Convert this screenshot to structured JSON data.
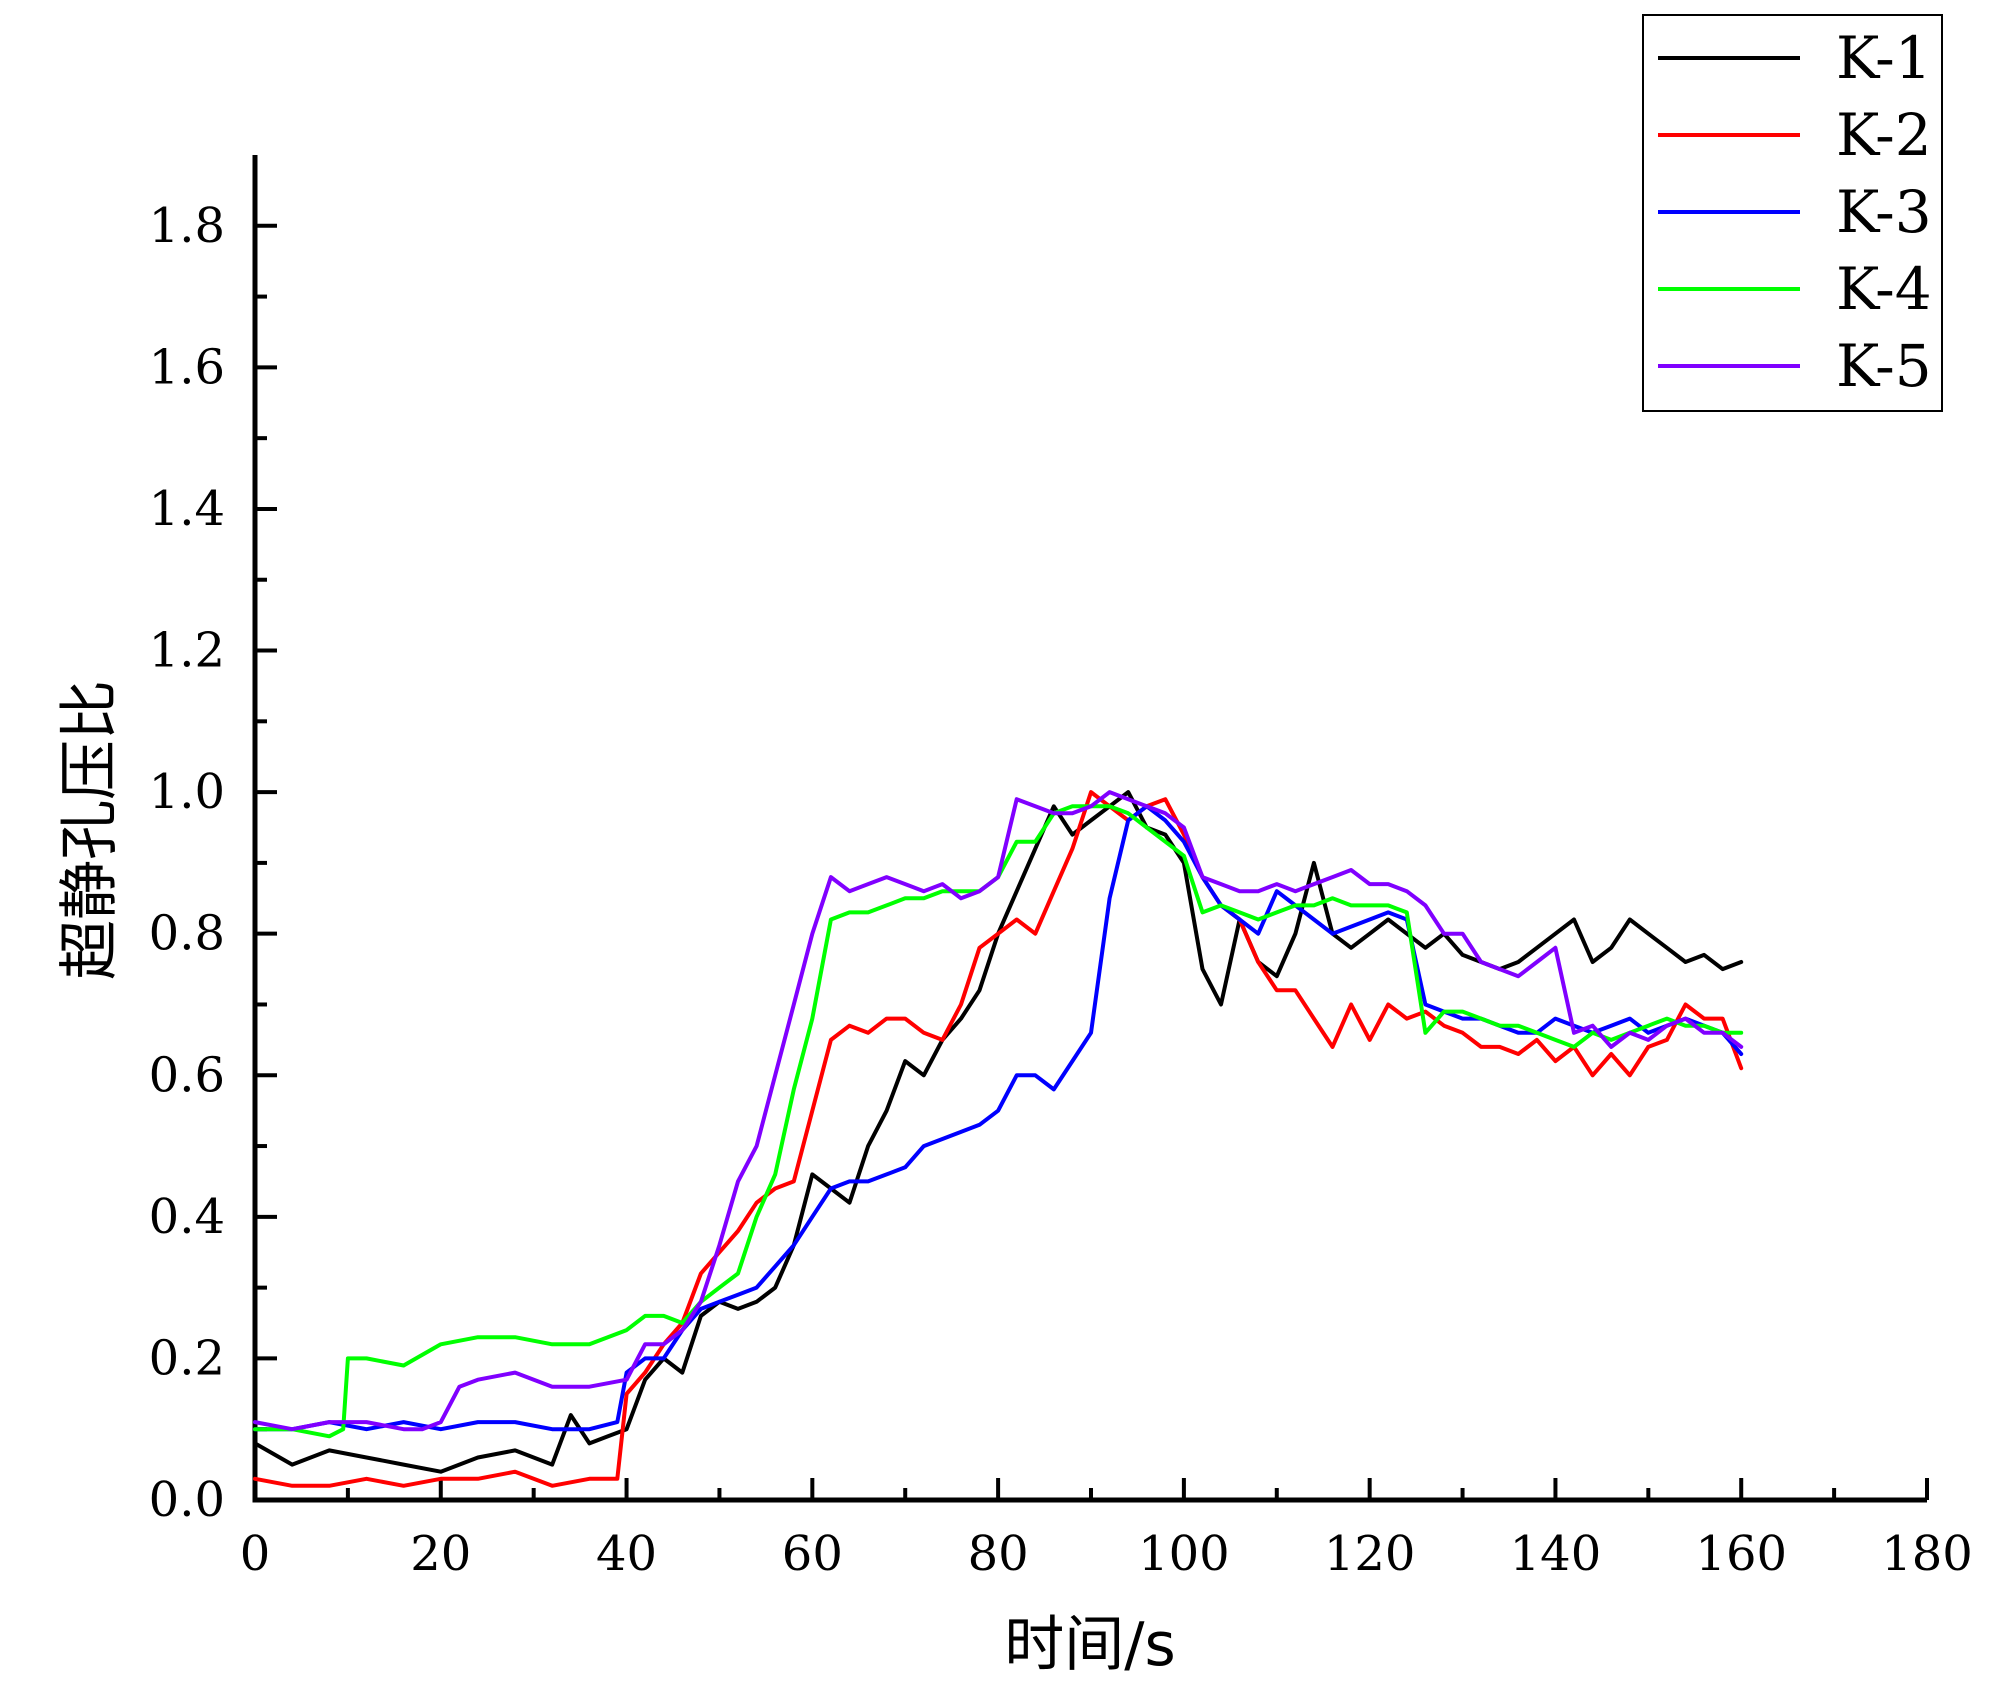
{
  "chart_data": {
    "type": "line",
    "title": "",
    "xlabel": "时间/s",
    "ylabel": "超静孔压比",
    "xlim": [
      0,
      180
    ],
    "ylim": [
      0,
      1.9
    ],
    "xticks": [
      "0",
      "20",
      "40",
      "60",
      "80",
      "100",
      "120",
      "140",
      "160",
      "180"
    ],
    "yticks": [
      "0.0",
      "0.2",
      "0.4",
      "0.6",
      "0.8",
      "1.0",
      "1.2",
      "1.4",
      "1.6",
      "1.8"
    ],
    "legend_position": "top-right",
    "series": [
      {
        "name": "K-1",
        "color": "#000000",
        "x": [
          0,
          4,
          8,
          12,
          16,
          20,
          24,
          28,
          32,
          34,
          36,
          38,
          40,
          42,
          44,
          46,
          48,
          50,
          52,
          54,
          56,
          58,
          60,
          62,
          64,
          66,
          68,
          70,
          72,
          74,
          76,
          78,
          80,
          82,
          84,
          86,
          88,
          90,
          92,
          94,
          96,
          98,
          100,
          102,
          104,
          106,
          108,
          110,
          112,
          114,
          116,
          118,
          120,
          122,
          124,
          126,
          128,
          130,
          132,
          134,
          136,
          138,
          140,
          142,
          144,
          146,
          148,
          150,
          152,
          154,
          156,
          158,
          160
        ],
        "y": [
          0.08,
          0.05,
          0.07,
          0.06,
          0.05,
          0.04,
          0.06,
          0.07,
          0.05,
          0.12,
          0.08,
          0.09,
          0.1,
          0.17,
          0.2,
          0.18,
          0.26,
          0.28,
          0.27,
          0.28,
          0.3,
          0.36,
          0.46,
          0.44,
          0.42,
          0.5,
          0.55,
          0.62,
          0.6,
          0.65,
          0.68,
          0.72,
          0.8,
          0.86,
          0.92,
          0.98,
          0.94,
          0.96,
          0.98,
          1.0,
          0.95,
          0.94,
          0.9,
          0.75,
          0.7,
          0.82,
          0.76,
          0.74,
          0.8,
          0.9,
          0.8,
          0.78,
          0.8,
          0.82,
          0.8,
          0.78,
          0.8,
          0.77,
          0.76,
          0.75,
          0.76,
          0.78,
          0.8,
          0.82,
          0.76,
          0.78,
          0.82,
          0.8,
          0.78,
          0.76,
          0.77,
          0.75,
          0.76
        ]
      },
      {
        "name": "K-2",
        "color": "#ff0000",
        "x": [
          0,
          4,
          8,
          12,
          16,
          20,
          24,
          28,
          32,
          36,
          39,
          40,
          42,
          44,
          46,
          48,
          50,
          52,
          54,
          56,
          58,
          60,
          62,
          64,
          66,
          68,
          70,
          72,
          74,
          76,
          78,
          80,
          82,
          84,
          86,
          88,
          90,
          92,
          94,
          96,
          98,
          100,
          102,
          104,
          106,
          108,
          110,
          112,
          114,
          116,
          118,
          120,
          122,
          124,
          126,
          128,
          130,
          132,
          134,
          136,
          138,
          140,
          142,
          144,
          146,
          148,
          150,
          152,
          154,
          156,
          158,
          160
        ],
        "y": [
          0.03,
          0.02,
          0.02,
          0.03,
          0.02,
          0.03,
          0.03,
          0.04,
          0.02,
          0.03,
          0.03,
          0.15,
          0.18,
          0.22,
          0.25,
          0.32,
          0.35,
          0.38,
          0.42,
          0.44,
          0.45,
          0.55,
          0.65,
          0.67,
          0.66,
          0.68,
          0.68,
          0.66,
          0.65,
          0.7,
          0.78,
          0.8,
          0.82,
          0.8,
          0.86,
          0.92,
          1.0,
          0.98,
          0.96,
          0.98,
          0.99,
          0.94,
          0.88,
          0.84,
          0.82,
          0.76,
          0.72,
          0.72,
          0.68,
          0.64,
          0.7,
          0.65,
          0.7,
          0.68,
          0.69,
          0.67,
          0.66,
          0.64,
          0.64,
          0.63,
          0.65,
          0.62,
          0.64,
          0.6,
          0.63,
          0.6,
          0.64,
          0.65,
          0.7,
          0.68,
          0.68,
          0.61
        ]
      },
      {
        "name": "K-3",
        "color": "#0000ff",
        "x": [
          0,
          4,
          8,
          12,
          16,
          20,
          24,
          28,
          32,
          36,
          39,
          40,
          42,
          44,
          46,
          48,
          50,
          52,
          54,
          56,
          58,
          60,
          62,
          64,
          66,
          68,
          70,
          72,
          74,
          76,
          78,
          80,
          82,
          84,
          86,
          88,
          90,
          92,
          94,
          96,
          98,
          100,
          102,
          104,
          106,
          108,
          110,
          112,
          114,
          116,
          118,
          120,
          122,
          124,
          126,
          128,
          130,
          132,
          134,
          136,
          138,
          140,
          142,
          144,
          146,
          148,
          150,
          152,
          154,
          156,
          158,
          160
        ],
        "y": [
          0.1,
          0.1,
          0.11,
          0.1,
          0.11,
          0.1,
          0.11,
          0.11,
          0.1,
          0.1,
          0.11,
          0.18,
          0.2,
          0.2,
          0.24,
          0.27,
          0.28,
          0.29,
          0.3,
          0.33,
          0.36,
          0.4,
          0.44,
          0.45,
          0.45,
          0.46,
          0.47,
          0.5,
          0.51,
          0.52,
          0.53,
          0.55,
          0.6,
          0.6,
          0.58,
          0.62,
          0.66,
          0.85,
          0.96,
          0.98,
          0.96,
          0.93,
          0.88,
          0.84,
          0.82,
          0.8,
          0.86,
          0.84,
          0.82,
          0.8,
          0.81,
          0.82,
          0.83,
          0.82,
          0.7,
          0.69,
          0.68,
          0.68,
          0.67,
          0.66,
          0.66,
          0.68,
          0.67,
          0.66,
          0.67,
          0.68,
          0.66,
          0.67,
          0.68,
          0.67,
          0.66,
          0.63
        ]
      },
      {
        "name": "K-4",
        "color": "#00ff00",
        "x": [
          0,
          4,
          8,
          9.5,
          10,
          12,
          16,
          20,
          24,
          28,
          32,
          36,
          40,
          42,
          44,
          46,
          48,
          50,
          52,
          54,
          56,
          58,
          60,
          62,
          64,
          66,
          68,
          70,
          72,
          74,
          76,
          78,
          80,
          82,
          84,
          86,
          88,
          90,
          92,
          94,
          96,
          98,
          100,
          102,
          104,
          106,
          108,
          110,
          112,
          114,
          116,
          118,
          120,
          122,
          124,
          126,
          128,
          130,
          132,
          134,
          136,
          138,
          140,
          142,
          144,
          146,
          148,
          150,
          152,
          154,
          156,
          158,
          160
        ],
        "y": [
          0.1,
          0.1,
          0.09,
          0.1,
          0.2,
          0.2,
          0.19,
          0.22,
          0.23,
          0.23,
          0.22,
          0.22,
          0.24,
          0.26,
          0.26,
          0.25,
          0.28,
          0.3,
          0.32,
          0.4,
          0.46,
          0.58,
          0.68,
          0.82,
          0.83,
          0.83,
          0.84,
          0.85,
          0.85,
          0.86,
          0.86,
          0.86,
          0.88,
          0.93,
          0.93,
          0.97,
          0.98,
          0.98,
          0.98,
          0.97,
          0.95,
          0.93,
          0.91,
          0.83,
          0.84,
          0.83,
          0.82,
          0.83,
          0.84,
          0.84,
          0.85,
          0.84,
          0.84,
          0.84,
          0.83,
          0.66,
          0.69,
          0.69,
          0.68,
          0.67,
          0.67,
          0.66,
          0.65,
          0.64,
          0.66,
          0.65,
          0.66,
          0.67,
          0.68,
          0.67,
          0.67,
          0.66,
          0.66
        ]
      },
      {
        "name": "K-5",
        "color": "#8000ff",
        "x": [
          0,
          4,
          8,
          12,
          16,
          18,
          20,
          22,
          24,
          28,
          32,
          36,
          40,
          42,
          44,
          46,
          48,
          50,
          52,
          54,
          56,
          58,
          60,
          62,
          64,
          66,
          68,
          70,
          72,
          74,
          76,
          78,
          80,
          82,
          84,
          86,
          88,
          90,
          92,
          94,
          96,
          98,
          100,
          102,
          104,
          106,
          108,
          110,
          112,
          114,
          116,
          118,
          120,
          122,
          124,
          126,
          128,
          130,
          132,
          134,
          136,
          138,
          140,
          142,
          144,
          146,
          148,
          150,
          152,
          154,
          156,
          158,
          160
        ],
        "y": [
          0.11,
          0.1,
          0.11,
          0.11,
          0.1,
          0.1,
          0.11,
          0.16,
          0.17,
          0.18,
          0.16,
          0.16,
          0.17,
          0.22,
          0.22,
          0.24,
          0.28,
          0.36,
          0.45,
          0.5,
          0.6,
          0.7,
          0.8,
          0.88,
          0.86,
          0.87,
          0.88,
          0.87,
          0.86,
          0.87,
          0.85,
          0.86,
          0.88,
          0.99,
          0.98,
          0.97,
          0.97,
          0.98,
          1.0,
          0.99,
          0.98,
          0.97,
          0.95,
          0.88,
          0.87,
          0.86,
          0.86,
          0.87,
          0.86,
          0.87,
          0.88,
          0.89,
          0.87,
          0.87,
          0.86,
          0.84,
          0.8,
          0.8,
          0.76,
          0.75,
          0.74,
          0.76,
          0.78,
          0.66,
          0.67,
          0.64,
          0.66,
          0.65,
          0.67,
          0.68,
          0.66,
          0.66,
          0.64
        ]
      }
    ]
  }
}
